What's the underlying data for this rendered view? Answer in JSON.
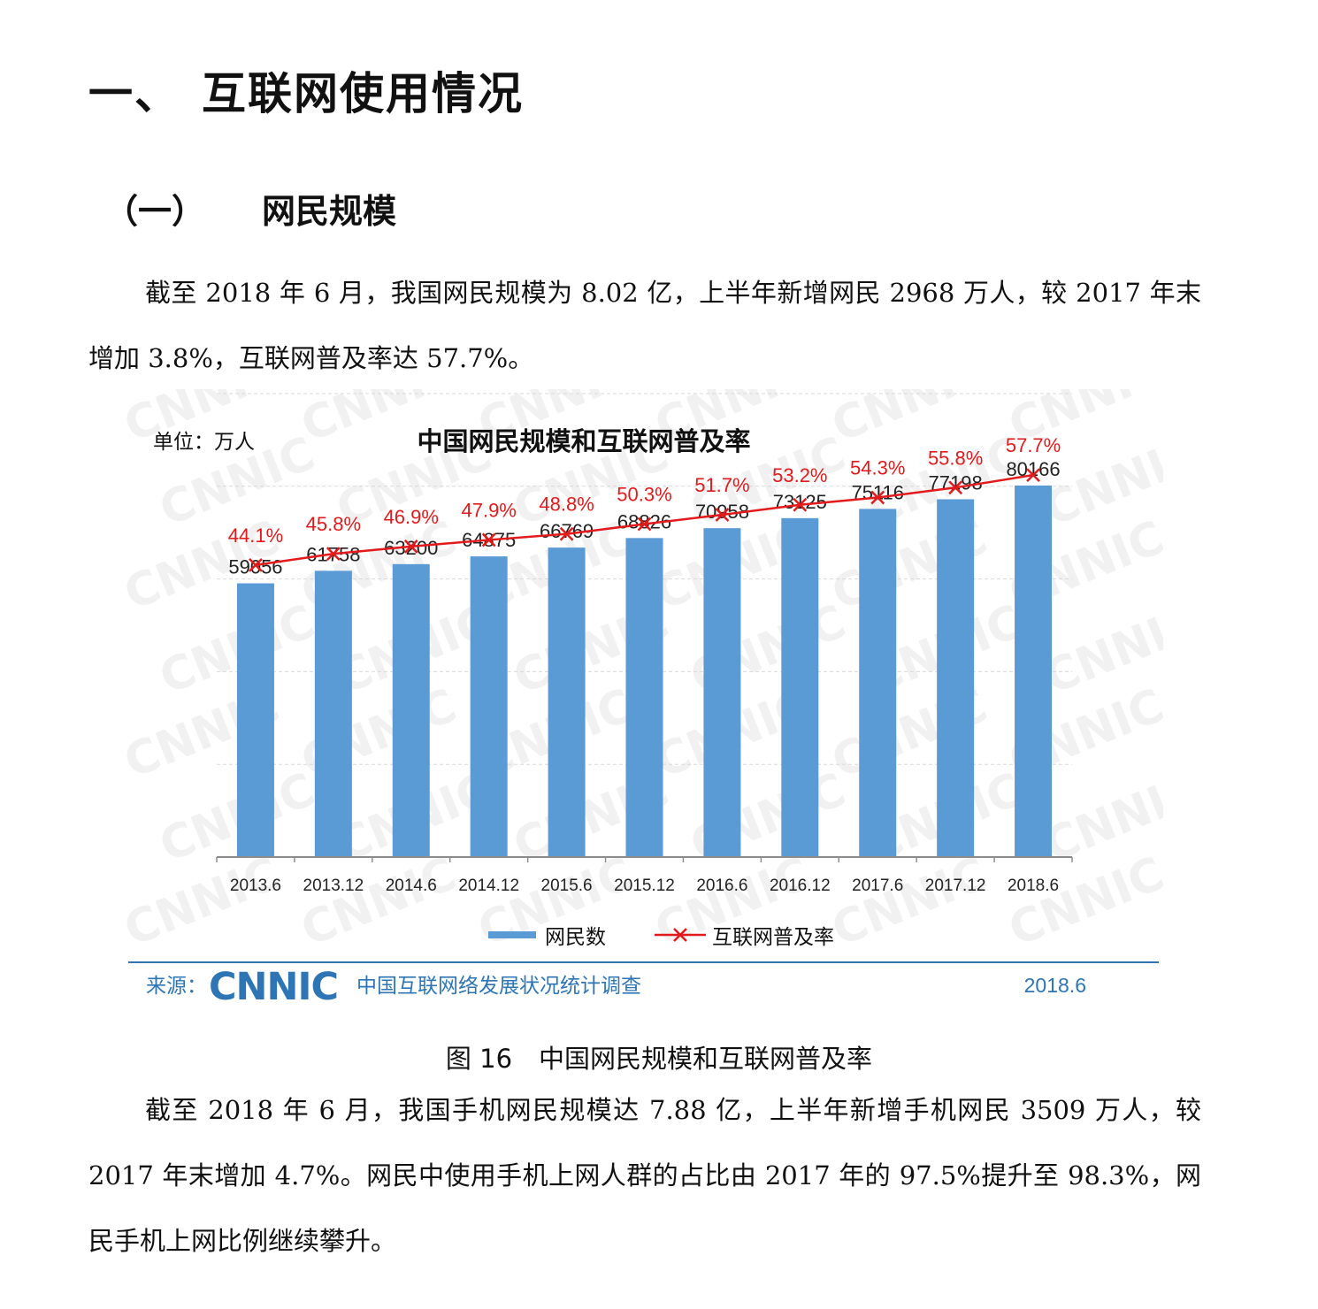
{
  "section": {
    "number": "一、",
    "title": "互联网使用情况"
  },
  "subsection": {
    "number": "（一）",
    "title": "网民规模"
  },
  "paragraph1": "截至 2018 年 6 月，我国网民规模为 8.02 亿，上半年新增网民 2968 万人，较 2017 年末增加 3.8%，互联网普及率达 57.7%。",
  "figure": {
    "unit_label": "单位：万人",
    "source_label": "来源：",
    "source_logo": "CNNIC",
    "source_name": "中国互联网络发展状况统计调查",
    "source_date": "2018.6",
    "watermark": "CNNIC",
    "caption_number": "图 16",
    "caption_title": "中国网民规模和互联网普及率"
  },
  "chart_data": {
    "type": "bar",
    "title": "中国网民规模和互联网普及率",
    "categories": [
      "2013.6",
      "2013.12",
      "2014.6",
      "2014.12",
      "2015.6",
      "2015.12",
      "2016.6",
      "2016.12",
      "2017.6",
      "2017.12",
      "2018.6"
    ],
    "series": [
      {
        "name": "网民数",
        "type": "bar",
        "color": "#5b9bd5",
        "values": [
          59056,
          61758,
          63200,
          64875,
          66769,
          68826,
          70958,
          73125,
          75116,
          77198,
          80166
        ]
      },
      {
        "name": "互联网普及率",
        "type": "line",
        "marker": "x",
        "color": "#e31a1c",
        "values": [
          44.1,
          45.8,
          46.9,
          47.9,
          48.8,
          50.3,
          51.7,
          53.2,
          54.3,
          55.8,
          57.7
        ],
        "labels": [
          "44.1%",
          "45.8%",
          "46.9%",
          "47.9%",
          "48.8%",
          "50.3%",
          "51.7%",
          "53.2%",
          "54.3%",
          "55.8%",
          "57.7%"
        ]
      }
    ],
    "ylim_bars": [
      0,
      100000
    ],
    "ylim_line": [
      0,
      70
    ],
    "grid": true,
    "legend": "bottom",
    "accent_color": "#2e75b6"
  },
  "paragraph2": "截至 2018 年 6 月，我国手机网民规模达 7.88 亿，上半年新增手机网民 3509 万人，较 2017 年末增加 4.7%。网民中使用手机上网人群的占比由 2017 年的 97.5%提升至 98.3%，网民手机上网比例继续攀升。"
}
